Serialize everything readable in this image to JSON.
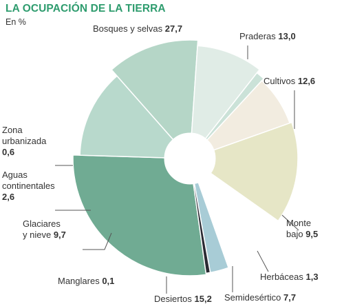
{
  "header": {
    "title": "LA OCUPACIÓN DE LA TIERRA",
    "subtitle": "En %"
  },
  "colors": {
    "title": "#2e9c6e",
    "leader": "#555555"
  },
  "chart_data": {
    "type": "pie",
    "title": "LA OCUPACIÓN DE LA TIERRA",
    "subtitle": "En %",
    "unit": "%",
    "series": [
      {
        "label": "Bosques y selvas",
        "value": 27.7,
        "value_label": "27,7",
        "color": "#70ab93"
      },
      {
        "label": "Praderas",
        "value": 13.0,
        "value_label": "13,0",
        "color": "#b8d9cc"
      },
      {
        "label": "Cultivos",
        "value": 12.6,
        "value_label": "12,6",
        "color": "#b5d6c7"
      },
      {
        "label": "Monte bajo",
        "value": 9.5,
        "value_label": "9,5",
        "color": "#e0ece6"
      },
      {
        "label": "Herbáceas",
        "value": 1.3,
        "value_label": "1,3",
        "color": "#cbe2d8"
      },
      {
        "label": "Semidesértico",
        "value": 7.7,
        "value_label": "7,7",
        "color": "#f2ece0"
      },
      {
        "label": "Desiertos",
        "value": 15.2,
        "value_label": "15,2",
        "color": "#e6e6c6"
      },
      {
        "label": "Manglares",
        "value": 0.1,
        "value_label": "0,1",
        "color": "#b8d6cc"
      },
      {
        "label": "Glaciares y nieve",
        "value": 9.7,
        "value_label": "9,7",
        "color": "#ffffff"
      },
      {
        "label": "Aguas continentales",
        "value": 2.6,
        "value_label": "2,6",
        "color": "#a8ccd6"
      },
      {
        "label": "Zona urbanizada",
        "value": 0.6,
        "value_label": "0,6",
        "color": "#2a2a33"
      }
    ]
  }
}
